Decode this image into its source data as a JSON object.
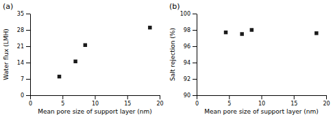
{
  "chart_data": [
    {
      "type": "scatter",
      "title": "(a)",
      "x_label": "Mean pore size of support layer (nm)",
      "y_label": "Water flux (LMH)",
      "x": [
        4.5,
        7.0,
        8.5,
        18.5
      ],
      "values": [
        8.0,
        14.5,
        21.5,
        29.0
      ],
      "xlim": [
        0,
        20
      ],
      "ylim": [
        0,
        35
      ],
      "xticks": [
        0,
        5,
        10,
        15,
        20
      ],
      "yticks": [
        0,
        7,
        14,
        21,
        28,
        35
      ],
      "color": "#1a1a1a",
      "marker": "square",
      "grid": false
    },
    {
      "type": "scatter",
      "title": "(b)",
      "x_label": "Mean pore size of support layer (nm)",
      "y_label": "Salt rejection (%)",
      "x": [
        4.5,
        7.0,
        8.5,
        18.5
      ],
      "values": [
        97.7,
        97.5,
        98.0,
        97.6
      ],
      "xlim": [
        0,
        20
      ],
      "ylim": [
        90,
        100
      ],
      "xticks": [
        0,
        5,
        10,
        15,
        20
      ],
      "yticks": [
        90,
        92,
        94,
        96,
        98,
        100
      ],
      "color": "#1a1a1a",
      "marker": "square",
      "grid": false
    }
  ]
}
